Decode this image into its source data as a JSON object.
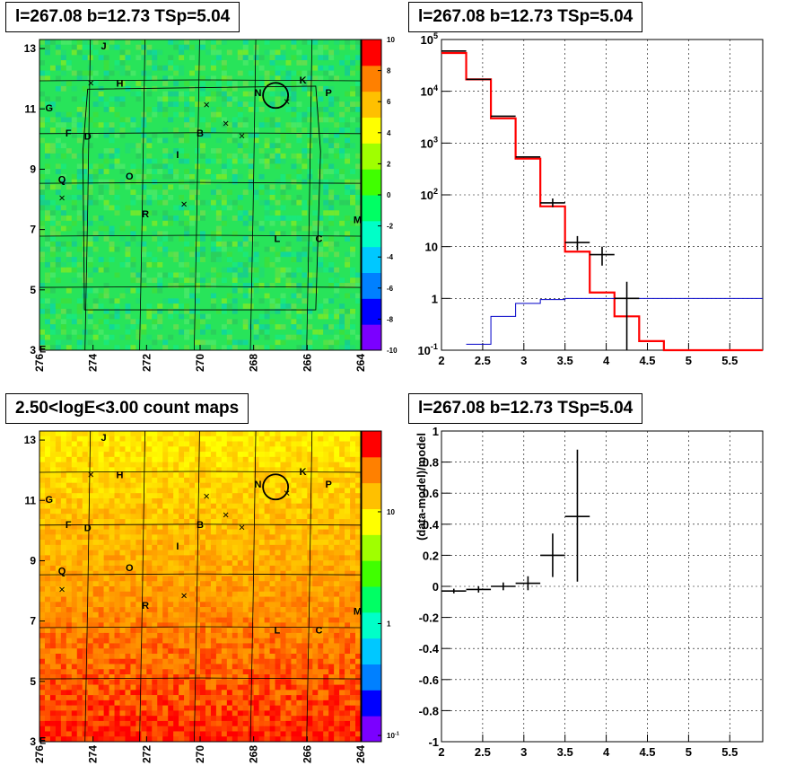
{
  "panels": {
    "tl": {
      "title": "l=267.08 b=12.73 TSp=5.04"
    },
    "tr": {
      "title": "l=267.08 b=12.73 TSp=5.04"
    },
    "bl": {
      "title": "2.50<logE<3.00 count maps"
    },
    "br": {
      "title": "l=267.08 b=12.73 TSp=5.04"
    }
  },
  "chart_data": [
    {
      "type": "heatmap",
      "title": "l=267.08 b=12.73 TSp=5.04",
      "x_ticks": [
        "276",
        "274",
        "272",
        "270",
        "268",
        "266",
        "264"
      ],
      "y_ticks": [
        "3",
        "5",
        "7",
        "9",
        "11",
        "13"
      ],
      "colorbar_ticks": [
        "10",
        "8",
        "6",
        "4",
        "2",
        "0",
        "-2",
        "-4",
        "-6",
        "-8",
        "-10"
      ],
      "colorbar_range": [
        -10,
        10
      ],
      "colors": [
        "#7b00ff",
        "#0000ff",
        "#0080ff",
        "#00c8ff",
        "#00ffc8",
        "#00ff64",
        "#40ff00",
        "#a0ff00",
        "#ffff00",
        "#ffc000",
        "#ff8000",
        "#ff0000"
      ],
      "field_color": "#28e45a",
      "labels": [
        "J",
        "H",
        "N",
        "K",
        "P",
        "G",
        "F",
        "D",
        "B",
        "I",
        "O",
        "Q",
        "R",
        "L",
        "C",
        "M",
        "E"
      ]
    },
    {
      "type": "line",
      "title": "l=267.08 b=12.73 TSp=5.04",
      "x_ticks": [
        "2",
        "2.5",
        "3",
        "3.5",
        "4",
        "4.5",
        "5",
        "5.5"
      ],
      "y_ticks": [
        "10^-1",
        "1",
        "10",
        "10^2",
        "10^3",
        "10^4",
        "10^5"
      ],
      "xlim": [
        2,
        5.9
      ],
      "ylim": [
        0.1,
        100000
      ],
      "y_log": true,
      "grid": true,
      "series": [
        {
          "color": "#ff0000",
          "bin_edges": [
            2.0,
            2.3,
            2.6,
            2.9,
            3.2,
            3.5,
            3.8,
            4.1,
            4.4,
            4.7,
            5.9
          ],
          "values": [
            55000,
            17000,
            3000,
            500,
            60,
            8,
            1.3,
            0.45,
            0.15,
            0.1
          ]
        },
        {
          "color": "#0000c8",
          "bin_edges": [
            2.3,
            2.6,
            2.9,
            3.2,
            3.5,
            3.8,
            5.9
          ],
          "values": [
            0.13,
            0.45,
            0.8,
            0.95,
            1.0,
            1.0
          ]
        },
        {
          "color": "#000000",
          "points": [
            {
              "x": 2.15,
              "y": 60000,
              "xerr": 0.15
            },
            {
              "x": 2.45,
              "y": 17000,
              "xerr": 0.15
            },
            {
              "x": 2.75,
              "y": 3300,
              "xerr": 0.15
            },
            {
              "x": 3.05,
              "y": 540,
              "xerr": 0.15
            },
            {
              "x": 3.35,
              "y": 70,
              "xerr": 0.15,
              "ylo": 58,
              "yhi": 85
            },
            {
              "x": 3.65,
              "y": 12,
              "xerr": 0.15,
              "ylo": 8.5,
              "yhi": 16
            },
            {
              "x": 3.95,
              "y": 7,
              "xerr": 0.15,
              "ylo": 4.3,
              "yhi": 10
            },
            {
              "x": 4.25,
              "y": 1,
              "xerr": 0.15,
              "ylo": 0.1,
              "yhi": 2.1
            }
          ]
        }
      ]
    },
    {
      "type": "heatmap",
      "title": "2.50<logE<3.00 count maps",
      "x_ticks": [
        "276",
        "274",
        "272",
        "270",
        "268",
        "266",
        "264"
      ],
      "y_ticks": [
        "3",
        "5",
        "7",
        "9",
        "11",
        "13"
      ],
      "colorbar_ticks": [
        "10",
        "1",
        "10^-1"
      ],
      "colorbar_log": true,
      "colors": [
        "#7b00ff",
        "#0000ff",
        "#0080ff",
        "#00c8ff",
        "#00ffc8",
        "#00ff64",
        "#40ff00",
        "#a0ff00",
        "#ffff00",
        "#ffc000",
        "#ff8000",
        "#ff0000"
      ],
      "labels": [
        "J",
        "H",
        "N",
        "K",
        "P",
        "G",
        "F",
        "D",
        "B",
        "I",
        "O",
        "Q",
        "R",
        "L",
        "C",
        "M",
        "E"
      ]
    },
    {
      "type": "scatter",
      "title": "l=267.08 b=12.73 TSp=5.04",
      "ylabel": "(data-model)/model",
      "x_ticks": [
        "2",
        "2.5",
        "3",
        "3.5",
        "4",
        "4.5",
        "5",
        "5.5"
      ],
      "y_ticks": [
        "1",
        "0.8",
        "0.6",
        "0.4",
        "0.2",
        "0",
        "-0.2",
        "-0.4",
        "-0.6",
        "-0.8",
        "-1"
      ],
      "xlim": [
        2,
        5.9
      ],
      "ylim": [
        -1,
        1
      ],
      "grid": true,
      "points": [
        {
          "x": 2.15,
          "y": -0.03,
          "xerr": 0.15,
          "yerr": 0.015
        },
        {
          "x": 2.45,
          "y": -0.02,
          "xerr": 0.15,
          "yerr": 0.02
        },
        {
          "x": 2.75,
          "y": 0.0,
          "xerr": 0.15,
          "yerr": 0.025
        },
        {
          "x": 3.05,
          "y": 0.02,
          "xerr": 0.15,
          "yerr": 0.045
        },
        {
          "x": 3.35,
          "y": 0.2,
          "xerr": 0.15,
          "ylo": 0.06,
          "yhi": 0.34
        },
        {
          "x": 3.65,
          "y": 0.45,
          "xerr": 0.15,
          "ylo": 0.03,
          "yhi": 0.88
        }
      ]
    }
  ]
}
